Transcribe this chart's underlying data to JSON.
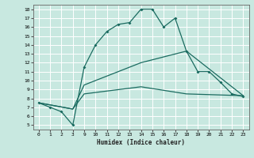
{
  "xlabel": "Humidex (Indice chaleur)",
  "bg_color": "#c8e8e0",
  "grid_color": "#ffffff",
  "line_color": "#1a6b60",
  "tick_labels": [
    "0",
    "1",
    "2",
    "3",
    "9",
    "10",
    "11",
    "12",
    "13",
    "14",
    "15",
    "16",
    "17",
    "18",
    "19",
    "20",
    "21",
    "22",
    "23"
  ],
  "ytick_vals": [
    5,
    6,
    7,
    8,
    9,
    10,
    11,
    12,
    13,
    14,
    15,
    16,
    17,
    18
  ],
  "ylim": [
    4.5,
    18.5
  ],
  "line1_pos": [
    0,
    1,
    2,
    3,
    4,
    5,
    6,
    7,
    8,
    9,
    10,
    11,
    12,
    13,
    14,
    15,
    16,
    17,
    18
  ],
  "line1_y": [
    7.5,
    7.0,
    6.5,
    5.0,
    11.5,
    14.0,
    15.5,
    16.3,
    16.5,
    18.0,
    18.0,
    16.0,
    17.0,
    13.3,
    11.0,
    11.0,
    9.8,
    8.5,
    8.2
  ],
  "line2_pos": [
    0,
    3,
    4,
    9,
    13,
    18
  ],
  "line2_y": [
    7.5,
    6.8,
    9.5,
    12.0,
    13.3,
    8.3
  ],
  "line3_pos": [
    0,
    3,
    4,
    9,
    13,
    18
  ],
  "line3_y": [
    7.5,
    6.8,
    8.5,
    9.3,
    8.5,
    8.3
  ]
}
